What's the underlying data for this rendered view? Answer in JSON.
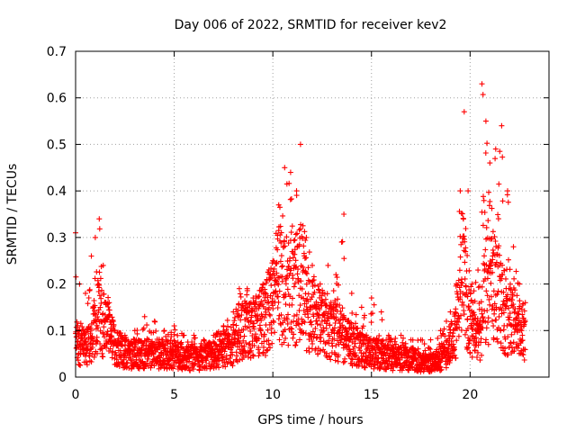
{
  "chart_data": {
    "type": "scatter",
    "title": "Day 006 of 2022, SRMTID for receiver kev2",
    "xlabel": "GPS time / hours",
    "ylabel": "SRMTID / TECUs",
    "xlim": [
      0,
      24
    ],
    "ylim": [
      0,
      0.7
    ],
    "xticks": [
      0,
      5,
      10,
      15,
      20
    ],
    "xtick_labels": [
      "0",
      "5",
      "10",
      "15",
      "20"
    ],
    "yticks": [
      0,
      0.1,
      0.2,
      0.3,
      0.4,
      0.5,
      0.6,
      0.7
    ],
    "ytick_labels": [
      "0",
      "0.1",
      "0.2",
      "0.3",
      "0.4",
      "0.5",
      "0.6",
      "0.7"
    ],
    "grid": true,
    "marker": "+",
    "series": [
      {
        "name": "SRMTID",
        "color": "#ff0000",
        "envelope": {
          "x": [
            0.0,
            0.2,
            0.5,
            0.8,
            1.0,
            1.2,
            1.4,
            1.7,
            2.0,
            2.5,
            3.0,
            3.5,
            4.0,
            4.5,
            5.0,
            5.5,
            6.0,
            6.5,
            7.0,
            7.5,
            8.0,
            8.3,
            8.7,
            9.0,
            9.5,
            10.0,
            10.3,
            10.6,
            10.9,
            11.2,
            11.4,
            11.7,
            12.0,
            12.4,
            12.8,
            13.2,
            13.6,
            14.0,
            14.5,
            15.0,
            15.5,
            16.0,
            16.5,
            17.0,
            17.5,
            18.0,
            18.5,
            18.8,
            19.0,
            19.3,
            19.5,
            19.7,
            19.9,
            20.1,
            20.4,
            20.6,
            20.8,
            21.0,
            21.3,
            21.6,
            21.9,
            22.2,
            22.5,
            22.8
          ],
          "typical": [
            0.08,
            0.07,
            0.06,
            0.08,
            0.11,
            0.14,
            0.12,
            0.09,
            0.07,
            0.05,
            0.05,
            0.05,
            0.05,
            0.05,
            0.05,
            0.04,
            0.04,
            0.04,
            0.05,
            0.06,
            0.07,
            0.1,
            0.1,
            0.1,
            0.12,
            0.16,
            0.2,
            0.2,
            0.19,
            0.19,
            0.2,
            0.16,
            0.14,
            0.12,
            0.1,
            0.1,
            0.08,
            0.07,
            0.06,
            0.05,
            0.05,
            0.04,
            0.04,
            0.04,
            0.03,
            0.03,
            0.04,
            0.05,
            0.07,
            0.1,
            0.18,
            0.22,
            0.14,
            0.1,
            0.08,
            0.12,
            0.2,
            0.18,
            0.2,
            0.15,
            0.13,
            0.12,
            0.1,
            0.09
          ],
          "peak": [
            0.31,
            0.2,
            0.18,
            0.26,
            0.3,
            0.34,
            0.24,
            0.16,
            0.1,
            0.09,
            0.1,
            0.13,
            0.12,
            0.1,
            0.11,
            0.09,
            0.09,
            0.08,
            0.09,
            0.11,
            0.14,
            0.19,
            0.19,
            0.17,
            0.2,
            0.25,
            0.37,
            0.45,
            0.44,
            0.4,
            0.5,
            0.3,
            0.24,
            0.2,
            0.24,
            0.22,
            0.35,
            0.18,
            0.15,
            0.17,
            0.14,
            0.08,
            0.09,
            0.08,
            0.08,
            0.08,
            0.1,
            0.12,
            0.14,
            0.2,
            0.4,
            0.57,
            0.4,
            0.2,
            0.23,
            0.63,
            0.55,
            0.46,
            0.49,
            0.54,
            0.4,
            0.28,
            0.2,
            0.16
          ]
        },
        "points_per_hour": 120
      }
    ]
  }
}
